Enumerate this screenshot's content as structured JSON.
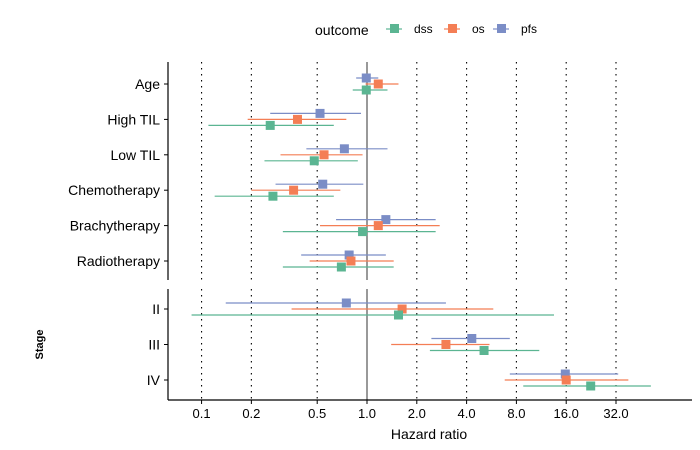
{
  "chart_data": {
    "type": "forest",
    "xlabel": "Hazard ratio",
    "x_scale": "log2",
    "xlim": [
      0.062,
      90
    ],
    "reference_line": 1.0,
    "x_ticks": [
      {
        "value": 0.1,
        "label": "0.1"
      },
      {
        "value": 0.2,
        "label": "0.2"
      },
      {
        "value": 0.5,
        "label": "0.5"
      },
      {
        "value": 1.0,
        "label": "1.0"
      },
      {
        "value": 2.0,
        "label": "2.0"
      },
      {
        "value": 4.0,
        "label": "4.0"
      },
      {
        "value": 8.0,
        "label": "8.0"
      },
      {
        "value": 16.0,
        "label": "16.0"
      },
      {
        "value": 32.0,
        "label": "32.0"
      }
    ],
    "legend": {
      "title": "outcome",
      "position": "top"
    },
    "series": [
      {
        "name": "dss",
        "color": "#5BB592"
      },
      {
        "name": "os",
        "color": "#F47E55"
      },
      {
        "name": "pfs",
        "color": "#7B8DC6"
      }
    ],
    "panels": [
      {
        "strip_label": "",
        "rows": [
          {
            "label": "Age",
            "estimates": {
              "dss": {
                "hr": 0.99,
                "low": 0.82,
                "high": 1.33
              },
              "os": {
                "hr": 1.17,
                "low": 0.98,
                "high": 1.55
              },
              "pfs": {
                "hr": 0.99,
                "low": 0.86,
                "high": 1.17
              }
            }
          },
          {
            "label": "High TIL",
            "estimates": {
              "dss": {
                "hr": 0.26,
                "low": 0.11,
                "high": 0.63
              },
              "os": {
                "hr": 0.38,
                "low": 0.19,
                "high": 0.75
              },
              "pfs": {
                "hr": 0.52,
                "low": 0.26,
                "high": 0.92
              }
            }
          },
          {
            "label": "Low TIL",
            "estimates": {
              "dss": {
                "hr": 0.48,
                "low": 0.24,
                "high": 0.88
              },
              "os": {
                "hr": 0.55,
                "low": 0.3,
                "high": 0.94
              },
              "pfs": {
                "hr": 0.73,
                "low": 0.43,
                "high": 1.33
              }
            }
          },
          {
            "label": "Chemotherapy",
            "estimates": {
              "dss": {
                "hr": 0.27,
                "low": 0.12,
                "high": 0.63
              },
              "os": {
                "hr": 0.36,
                "low": 0.2,
                "high": 0.69
              },
              "pfs": {
                "hr": 0.54,
                "low": 0.28,
                "high": 0.95
              }
            }
          },
          {
            "label": "Brachytherapy",
            "estimates": {
              "dss": {
                "hr": 0.94,
                "low": 0.31,
                "high": 2.6
              },
              "os": {
                "hr": 1.17,
                "low": 0.52,
                "high": 2.75
              },
              "pfs": {
                "hr": 1.3,
                "low": 0.65,
                "high": 2.6
              }
            }
          },
          {
            "label": "Radiotherapy",
            "estimates": {
              "dss": {
                "hr": 0.7,
                "low": 0.31,
                "high": 1.45
              },
              "os": {
                "hr": 0.8,
                "low": 0.45,
                "high": 1.45
              },
              "pfs": {
                "hr": 0.78,
                "low": 0.4,
                "high": 1.3
              }
            }
          }
        ]
      },
      {
        "strip_label": "Stage",
        "rows": [
          {
            "label": "II",
            "estimates": {
              "dss": {
                "hr": 1.55,
                "low": 0.087,
                "high": 13.5
              },
              "os": {
                "hr": 1.63,
                "low": 0.35,
                "high": 5.8
              },
              "pfs": {
                "hr": 0.75,
                "low": 0.14,
                "high": 3.0
              }
            }
          },
          {
            "label": "III",
            "estimates": {
              "dss": {
                "hr": 5.1,
                "low": 2.4,
                "high": 11.0
              },
              "os": {
                "hr": 3.0,
                "low": 1.4,
                "high": 5.5
              },
              "pfs": {
                "hr": 4.3,
                "low": 2.45,
                "high": 7.3
              }
            }
          },
          {
            "label": "IV",
            "estimates": {
              "dss": {
                "hr": 22.5,
                "low": 8.8,
                "high": 52.0
              },
              "os": {
                "hr": 16.0,
                "low": 6.8,
                "high": 38.0
              },
              "pfs": {
                "hr": 15.8,
                "low": 7.3,
                "high": 33.0
              }
            }
          }
        ]
      }
    ]
  }
}
